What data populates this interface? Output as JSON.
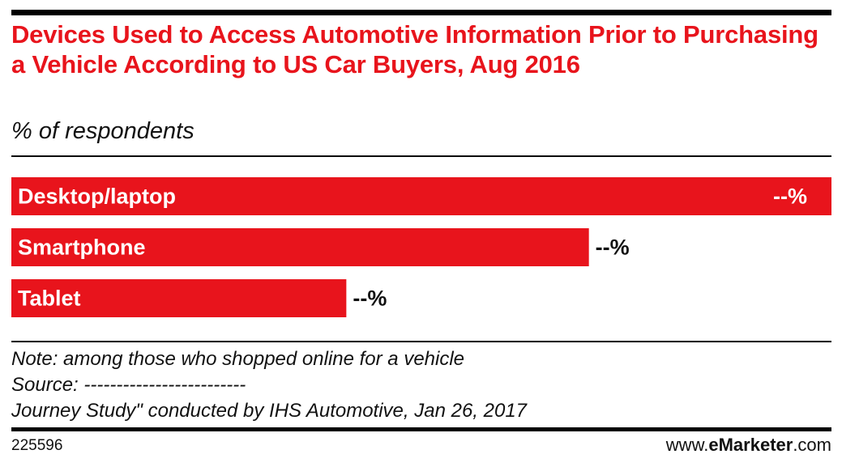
{
  "chart_data": {
    "type": "bar",
    "orientation": "horizontal",
    "title": "Devices Used to Access Automotive Information Prior to Purchasing a Vehicle According to US Car Buyers, Aug 2016",
    "subtitle": "% of respondents",
    "categories": [
      "Desktop/laptop",
      "Smartphone",
      "Tablet"
    ],
    "values": [
      71,
      50,
      29
    ],
    "value_labels": [
      "--%",
      "--%",
      "--%"
    ],
    "color": "#e8141c",
    "notes": [
      "Note: among those who shopped online for a vehicle",
      "Source: -------------------------",
      "Journey Study\" conducted by IHS Automotive, Jan 26, 2017"
    ],
    "chart_id": "225596",
    "brand": [
      "www.",
      "eMarketer",
      ".com"
    ]
  }
}
